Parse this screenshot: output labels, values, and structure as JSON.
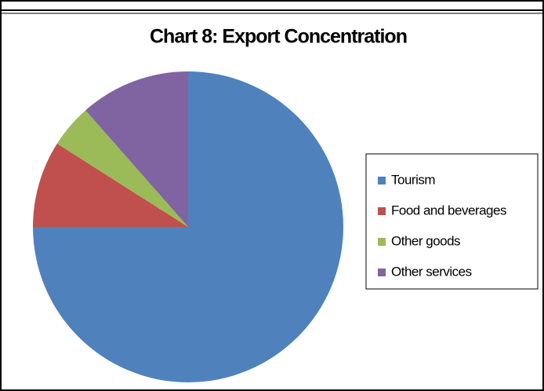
{
  "chart_data": {
    "type": "pie",
    "title": "Chart 8: Export Concentration",
    "categories": [
      "Tourism",
      "Food and beverages",
      "Other goods",
      "Other services"
    ],
    "values": [
      75,
      9,
      4.5,
      11.5
    ],
    "colors": [
      "#4f81bd",
      "#c0504d",
      "#9bbb59",
      "#8064a2"
    ],
    "legend": "right"
  }
}
